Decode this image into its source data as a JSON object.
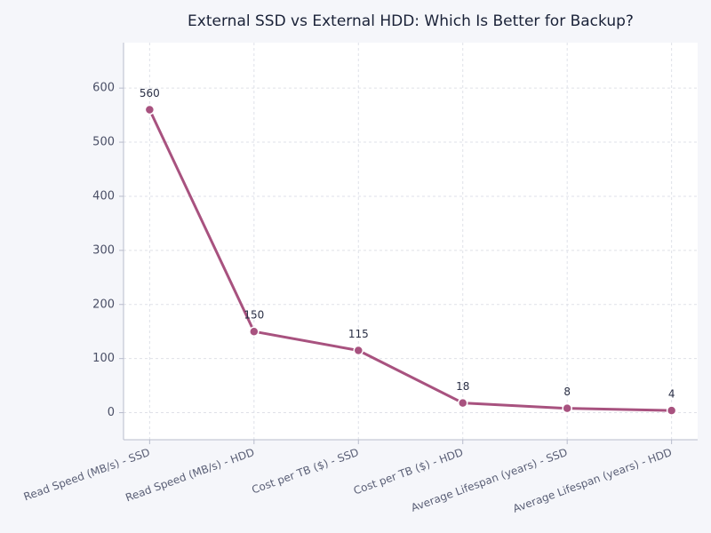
{
  "chart_data": {
    "type": "line",
    "title": "External SSD vs External HDD: Which Is Better for Backup?",
    "categories": [
      "Read Speed (MB/s) - SSD",
      "Read Speed (MB/s) - HDD",
      "Cost per TB ($) - SSD",
      "Cost per TB ($) - HDD",
      "Average Lifespan (years) - SSD",
      "Average Lifespan (years) - HDD"
    ],
    "values": [
      560,
      150,
      115,
      18,
      8,
      4
    ],
    "color": "#a8527f",
    "ylim": [
      -50,
      684
    ],
    "yticks": [
      0,
      100,
      200,
      300,
      400,
      500,
      600
    ],
    "grid": true
  }
}
